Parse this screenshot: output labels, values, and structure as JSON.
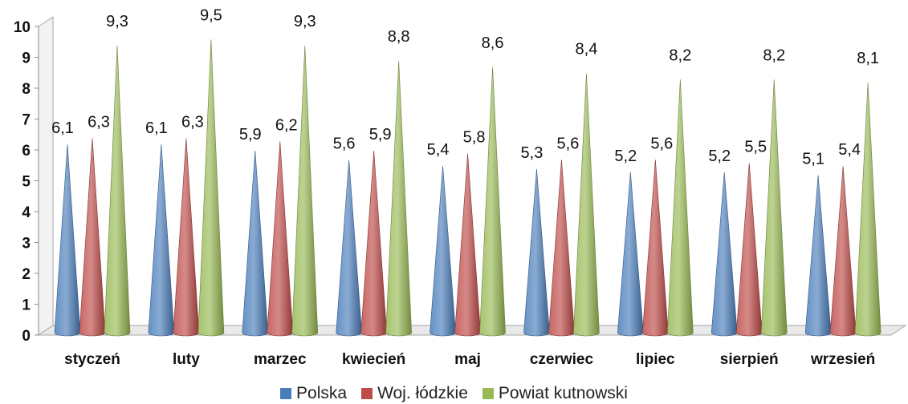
{
  "chart_data": {
    "type": "bar",
    "style": "3d-cone",
    "categories": [
      "styczeń",
      "luty",
      "marzec",
      "kwiecień",
      "maj",
      "czerwiec",
      "lipiec",
      "sierpień",
      "wrzesień"
    ],
    "series": [
      {
        "name": "Polska",
        "color": "#4a7ebb",
        "values": [
          6.1,
          6.1,
          5.9,
          5.6,
          5.4,
          5.3,
          5.2,
          5.2,
          5.1
        ],
        "labels": [
          "6,1",
          "6,1",
          "5,9",
          "5,6",
          "5,4",
          "5,3",
          "5,2",
          "5,2",
          "5,1"
        ]
      },
      {
        "name": "Woj. łódzkie",
        "color": "#be4b48",
        "values": [
          6.3,
          6.3,
          6.2,
          5.9,
          5.8,
          5.6,
          5.6,
          5.5,
          5.4
        ],
        "labels": [
          "6,3",
          "6,3",
          "6,2",
          "5,9",
          "5,8",
          "5,6",
          "5,6",
          "5,5",
          "5,4"
        ]
      },
      {
        "name": "Powiat kutnowski",
        "color": "#98b954",
        "values": [
          9.3,
          9.5,
          9.3,
          8.8,
          8.6,
          8.4,
          8.2,
          8.2,
          8.1
        ],
        "labels": [
          "9,3",
          "9,5",
          "9,3",
          "8,8",
          "8,6",
          "8,4",
          "8,2",
          "8,2",
          "8,1"
        ]
      }
    ],
    "yticks": [
      "0",
      "1",
      "2",
      "3",
      "4",
      "5",
      "6",
      "7",
      "8",
      "9",
      "10"
    ],
    "ylim": [
      0,
      10
    ],
    "title": "",
    "xlabel": "",
    "ylabel": "",
    "grid": false,
    "legend_position": "bottom"
  }
}
